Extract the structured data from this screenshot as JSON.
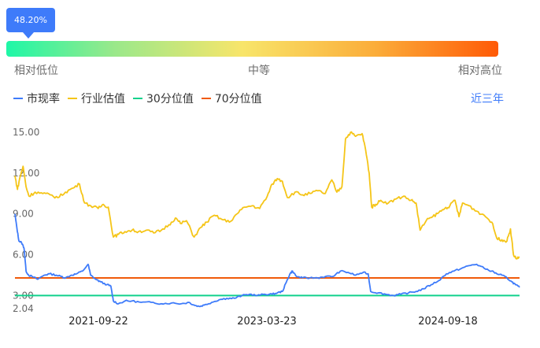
{
  "gauge": {
    "percent_label": "48.20%",
    "percent": 48.2,
    "labels": {
      "low": "相对低位",
      "mid": "中等",
      "high": "相对高位"
    },
    "colors": [
      "#1ef7a7",
      "#f8e56a",
      "#ff5a06"
    ]
  },
  "range_link": "近三年",
  "chart_data": {
    "type": "line",
    "ylim": [
      2.04,
      16
    ],
    "y_ticks": [
      "15.00",
      "12.00",
      "9.00",
      "6.00",
      "3.00",
      "2.04"
    ],
    "x_ticks": [
      "2021-09-22",
      "2023-03-23",
      "2024-09-18"
    ],
    "series": [
      {
        "name": "市现率",
        "color": "#3e7bfa",
        "points": [
          [
            0,
            9.0
          ],
          [
            0.004,
            7.9
          ],
          [
            0.008,
            7.0
          ],
          [
            0.013,
            6.9
          ],
          [
            0.018,
            6.5
          ],
          [
            0.022,
            4.8
          ],
          [
            0.027,
            4.5
          ],
          [
            0.034,
            4.4
          ],
          [
            0.045,
            4.2
          ],
          [
            0.058,
            4.5
          ],
          [
            0.068,
            4.6
          ],
          [
            0.082,
            4.5
          ],
          [
            0.092,
            4.4
          ],
          [
            0.1,
            4.3
          ],
          [
            0.112,
            4.5
          ],
          [
            0.122,
            4.6
          ],
          [
            0.134,
            4.8
          ],
          [
            0.145,
            5.3
          ],
          [
            0.15,
            4.5
          ],
          [
            0.16,
            4.2
          ],
          [
            0.17,
            4.0
          ],
          [
            0.182,
            3.8
          ],
          [
            0.19,
            3.7
          ],
          [
            0.195,
            2.6
          ],
          [
            0.205,
            2.4
          ],
          [
            0.218,
            2.6
          ],
          [
            0.232,
            2.6
          ],
          [
            0.25,
            2.5
          ],
          [
            0.27,
            2.5
          ],
          [
            0.29,
            2.4
          ],
          [
            0.31,
            2.45
          ],
          [
            0.33,
            2.4
          ],
          [
            0.345,
            2.5
          ],
          [
            0.355,
            2.3
          ],
          [
            0.365,
            2.2
          ],
          [
            0.375,
            2.3
          ],
          [
            0.39,
            2.5
          ],
          [
            0.405,
            2.7
          ],
          [
            0.42,
            2.8
          ],
          [
            0.435,
            2.8
          ],
          [
            0.45,
            3.0
          ],
          [
            0.465,
            3.1
          ],
          [
            0.48,
            3.0
          ],
          [
            0.495,
            3.1
          ],
          [
            0.51,
            3.1
          ],
          [
            0.52,
            3.2
          ],
          [
            0.53,
            3.3
          ],
          [
            0.538,
            4.0
          ],
          [
            0.545,
            4.6
          ],
          [
            0.55,
            4.8
          ],
          [
            0.558,
            4.4
          ],
          [
            0.57,
            4.3
          ],
          [
            0.585,
            4.3
          ],
          [
            0.6,
            4.3
          ],
          [
            0.615,
            4.4
          ],
          [
            0.63,
            4.4
          ],
          [
            0.645,
            4.8
          ],
          [
            0.66,
            4.7
          ],
          [
            0.675,
            4.5
          ],
          [
            0.69,
            4.7
          ],
          [
            0.7,
            4.6
          ],
          [
            0.705,
            3.3
          ],
          [
            0.72,
            3.2
          ],
          [
            0.735,
            3.1
          ],
          [
            0.75,
            3.0
          ],
          [
            0.765,
            3.1
          ],
          [
            0.78,
            3.2
          ],
          [
            0.795,
            3.3
          ],
          [
            0.81,
            3.5
          ],
          [
            0.825,
            3.8
          ],
          [
            0.84,
            4.1
          ],
          [
            0.855,
            4.6
          ],
          [
            0.87,
            4.8
          ],
          [
            0.885,
            5.0
          ],
          [
            0.9,
            5.2
          ],
          [
            0.915,
            5.3
          ],
          [
            0.93,
            5.0
          ],
          [
            0.945,
            4.8
          ],
          [
            0.955,
            4.6
          ],
          [
            0.965,
            4.5
          ],
          [
            0.975,
            4.3
          ],
          [
            0.985,
            4.0
          ],
          [
            0.992,
            3.8
          ],
          [
            1.0,
            3.6
          ]
        ]
      },
      {
        "name": "行业估值",
        "color": "#f5c518",
        "points": [
          [
            0,
            11.8
          ],
          [
            0.005,
            10.8
          ],
          [
            0.01,
            11.7
          ],
          [
            0.016,
            12.5
          ],
          [
            0.022,
            11.0
          ],
          [
            0.028,
            10.3
          ],
          [
            0.04,
            10.6
          ],
          [
            0.055,
            10.5
          ],
          [
            0.07,
            10.4
          ],
          [
            0.085,
            10.2
          ],
          [
            0.1,
            10.6
          ],
          [
            0.115,
            10.9
          ],
          [
            0.128,
            11.2
          ],
          [
            0.138,
            9.8
          ],
          [
            0.15,
            9.6
          ],
          [
            0.165,
            9.4
          ],
          [
            0.175,
            9.7
          ],
          [
            0.185,
            9.5
          ],
          [
            0.195,
            7.3
          ],
          [
            0.205,
            7.5
          ],
          [
            0.218,
            7.7
          ],
          [
            0.232,
            7.8
          ],
          [
            0.245,
            7.7
          ],
          [
            0.26,
            7.8
          ],
          [
            0.275,
            7.6
          ],
          [
            0.29,
            7.8
          ],
          [
            0.305,
            8.2
          ],
          [
            0.318,
            8.7
          ],
          [
            0.328,
            8.3
          ],
          [
            0.34,
            8.5
          ],
          [
            0.355,
            7.3
          ],
          [
            0.368,
            8.0
          ],
          [
            0.38,
            8.4
          ],
          [
            0.395,
            8.9
          ],
          [
            0.41,
            8.6
          ],
          [
            0.425,
            8.4
          ],
          [
            0.44,
            9.0
          ],
          [
            0.455,
            9.5
          ],
          [
            0.47,
            9.6
          ],
          [
            0.485,
            9.4
          ],
          [
            0.5,
            10.3
          ],
          [
            0.51,
            11.2
          ],
          [
            0.52,
            11.6
          ],
          [
            0.53,
            11.4
          ],
          [
            0.54,
            10.2
          ],
          [
            0.555,
            10.6
          ],
          [
            0.57,
            10.4
          ],
          [
            0.585,
            10.5
          ],
          [
            0.6,
            10.7
          ],
          [
            0.615,
            10.5
          ],
          [
            0.628,
            11.5
          ],
          [
            0.638,
            10.6
          ],
          [
            0.648,
            11.0
          ],
          [
            0.655,
            14.5
          ],
          [
            0.665,
            15.0
          ],
          [
            0.675,
            14.7
          ],
          [
            0.688,
            14.9
          ],
          [
            0.695,
            13.7
          ],
          [
            0.702,
            12.0
          ],
          [
            0.707,
            9.5
          ],
          [
            0.715,
            9.7
          ],
          [
            0.725,
            10.0
          ],
          [
            0.74,
            9.8
          ],
          [
            0.755,
            10.1
          ],
          [
            0.77,
            10.3
          ],
          [
            0.785,
            10.0
          ],
          [
            0.795,
            9.8
          ],
          [
            0.803,
            7.8
          ],
          [
            0.815,
            8.5
          ],
          [
            0.828,
            8.8
          ],
          [
            0.84,
            9.1
          ],
          [
            0.852,
            9.4
          ],
          [
            0.862,
            9.6
          ],
          [
            0.872,
            10.0
          ],
          [
            0.88,
            8.8
          ],
          [
            0.887,
            9.8
          ],
          [
            0.9,
            9.6
          ],
          [
            0.915,
            9.2
          ],
          [
            0.93,
            8.9
          ],
          [
            0.945,
            8.4
          ],
          [
            0.955,
            7.2
          ],
          [
            0.965,
            7.1
          ],
          [
            0.975,
            7.0
          ],
          [
            0.982,
            7.9
          ],
          [
            0.988,
            6.0
          ],
          [
            0.994,
            5.7
          ],
          [
            1.0,
            5.8
          ]
        ]
      },
      {
        "name": "30分位值",
        "color": "#11d18c",
        "value": 3.0
      },
      {
        "name": "70分位值",
        "color": "#f05a0a",
        "value": 4.3
      }
    ]
  }
}
